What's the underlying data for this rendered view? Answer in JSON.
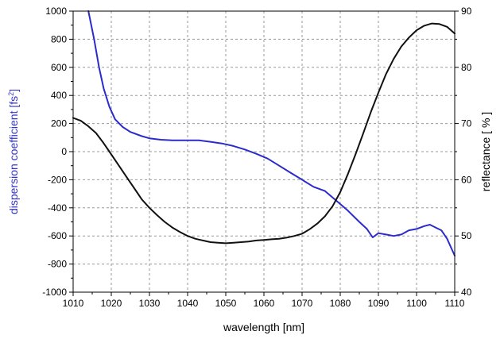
{
  "chart_data": {
    "type": "line",
    "title": "",
    "xlabel": "wavelength [nm]",
    "ylabel": "dispersion coefficient [fs",
    "ylabel_superscript": "2",
    "ylabel_close": "]",
    "y2label": "reflectance [ % ]",
    "xlim": [
      1010,
      1110
    ],
    "ylim": [
      -1000,
      1000
    ],
    "y2lim": [
      40,
      90
    ],
    "xticks": [
      1010,
      1020,
      1030,
      1040,
      1050,
      1060,
      1070,
      1080,
      1090,
      1100,
      1110
    ],
    "yticks": [
      -1000,
      -800,
      -600,
      -400,
      -200,
      0,
      200,
      400,
      600,
      800,
      1000
    ],
    "y2ticks": [
      40,
      50,
      60,
      70,
      80,
      90
    ],
    "grid": true,
    "legend": "none",
    "series": [
      {
        "axis": "left",
        "color": "#2b2bcc",
        "points": [
          [
            1014.0,
            1000
          ],
          [
            1015.5,
            800
          ],
          [
            1016.8,
            600
          ],
          [
            1018.0,
            450
          ],
          [
            1019.5,
            320
          ],
          [
            1021.0,
            230
          ],
          [
            1023.0,
            175
          ],
          [
            1025.0,
            140
          ],
          [
            1028.0,
            110
          ],
          [
            1030.0,
            95
          ],
          [
            1033.0,
            85
          ],
          [
            1036.0,
            80
          ],
          [
            1040.0,
            80
          ],
          [
            1043.0,
            80
          ],
          [
            1046.0,
            70
          ],
          [
            1049.0,
            58
          ],
          [
            1052.0,
            40
          ],
          [
            1055.0,
            15
          ],
          [
            1058.0,
            -15
          ],
          [
            1061.0,
            -50
          ],
          [
            1064.0,
            -100
          ],
          [
            1067.0,
            -150
          ],
          [
            1070.0,
            -200
          ],
          [
            1073.0,
            -250
          ],
          [
            1076.0,
            -280
          ],
          [
            1079.0,
            -350
          ],
          [
            1082.0,
            -420
          ],
          [
            1085.0,
            -500
          ],
          [
            1087.0,
            -550
          ],
          [
            1088.5,
            -610
          ],
          [
            1090.0,
            -580
          ],
          [
            1092.0,
            -590
          ],
          [
            1094.0,
            -600
          ],
          [
            1096.0,
            -590
          ],
          [
            1098.0,
            -560
          ],
          [
            1100.0,
            -550
          ],
          [
            1102.0,
            -530
          ],
          [
            1103.5,
            -520
          ],
          [
            1105.0,
            -540
          ],
          [
            1106.5,
            -560
          ],
          [
            1108.0,
            -620
          ],
          [
            1109.0,
            -680
          ],
          [
            1110.0,
            -740
          ]
        ]
      },
      {
        "axis": "right",
        "color": "#111111",
        "points": [
          [
            1010.0,
            71.0
          ],
          [
            1012.0,
            70.5
          ],
          [
            1014.0,
            69.5
          ],
          [
            1016.0,
            68.3
          ],
          [
            1018.0,
            66.5
          ],
          [
            1020.0,
            64.5
          ],
          [
            1022.0,
            62.5
          ],
          [
            1024.0,
            60.5
          ],
          [
            1026.0,
            58.5
          ],
          [
            1028.0,
            56.5
          ],
          [
            1030.0,
            55.0
          ],
          [
            1032.0,
            53.7
          ],
          [
            1034.0,
            52.5
          ],
          [
            1036.0,
            51.5
          ],
          [
            1038.0,
            50.7
          ],
          [
            1040.0,
            50.0
          ],
          [
            1042.0,
            49.5
          ],
          [
            1044.0,
            49.2
          ],
          [
            1046.0,
            48.9
          ],
          [
            1048.0,
            48.8
          ],
          [
            1050.0,
            48.7
          ],
          [
            1052.0,
            48.8
          ],
          [
            1054.0,
            48.9
          ],
          [
            1056.0,
            49.0
          ],
          [
            1058.0,
            49.2
          ],
          [
            1060.0,
            49.3
          ],
          [
            1062.0,
            49.4
          ],
          [
            1064.0,
            49.5
          ],
          [
            1066.0,
            49.7
          ],
          [
            1068.0,
            50.0
          ],
          [
            1070.0,
            50.4
          ],
          [
            1072.0,
            51.2
          ],
          [
            1074.0,
            52.2
          ],
          [
            1076.0,
            53.5
          ],
          [
            1078.0,
            55.3
          ],
          [
            1080.0,
            57.8
          ],
          [
            1082.0,
            61.0
          ],
          [
            1084.0,
            64.5
          ],
          [
            1086.0,
            68.2
          ],
          [
            1088.0,
            72.0
          ],
          [
            1090.0,
            75.5
          ],
          [
            1092.0,
            78.8
          ],
          [
            1094.0,
            81.5
          ],
          [
            1096.0,
            83.7
          ],
          [
            1098.0,
            85.3
          ],
          [
            1100.0,
            86.6
          ],
          [
            1102.0,
            87.4
          ],
          [
            1104.0,
            87.8
          ],
          [
            1106.0,
            87.7
          ],
          [
            1108.0,
            87.2
          ],
          [
            1110.0,
            86.0
          ]
        ]
      }
    ],
    "colors": {
      "left_axis_title": "#3333cc",
      "right_axis_title": "#000000",
      "grid": "#9a9a9a"
    }
  }
}
